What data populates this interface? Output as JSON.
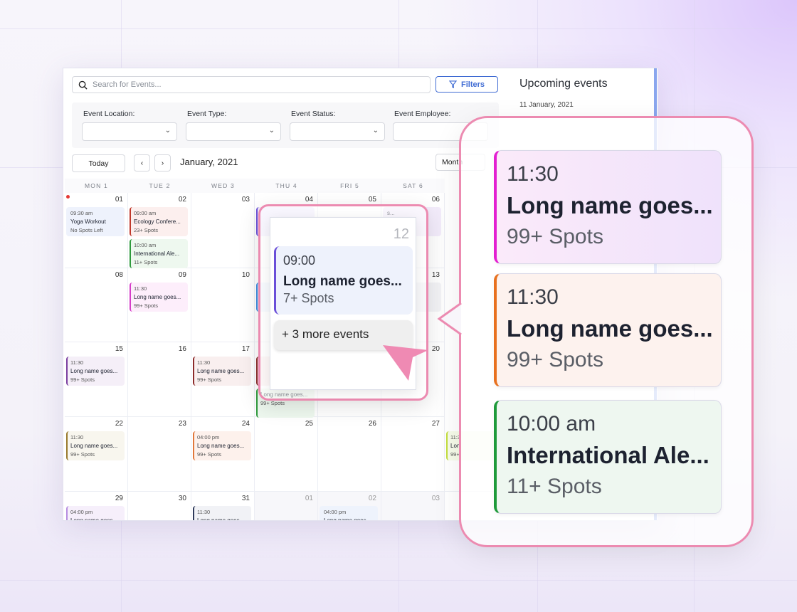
{
  "search": {
    "placeholder": "Search for Events..."
  },
  "filters_label": "Filters",
  "filter_groups": [
    {
      "label": "Event Location:"
    },
    {
      "label": "Event Type:"
    },
    {
      "label": "Event Status:"
    },
    {
      "label": "Event Employee:"
    }
  ],
  "nav": {
    "today": "Today",
    "prev": "‹",
    "next": "›",
    "month_title": "January, 2021",
    "view": "Month"
  },
  "sidebar": {
    "title": "Upcoming events",
    "date": "11 January, 2021"
  },
  "weekdays": [
    "MON 1",
    "TUE 2",
    "WED 3",
    "THU 4",
    "FRI 5",
    "SAT 6"
  ],
  "weeks": [
    [
      {
        "d": "01",
        "dot": true,
        "ev": [
          {
            "t": "09:30 am",
            "n": "Yoga Workout",
            "s": "No Spots Left",
            "c": "#eef2fc",
            "b": "#eef2fc"
          }
        ]
      },
      {
        "d": "02",
        "ev": [
          {
            "t": "09:00 am",
            "n": "Ecology Confere...",
            "s": "23+ Spots",
            "c": "#fcefee",
            "b": "#c0392b"
          },
          {
            "t": "10:00 am",
            "n": "International Ale...",
            "s": "11+ Spots",
            "c": "#eef8ef",
            "b": "#2e9a3c"
          }
        ]
      },
      {
        "d": "03",
        "ev": []
      },
      {
        "d": "04",
        "ev": [
          {
            "t": "",
            "n": "",
            "s": "",
            "c": "#f1ecfc",
            "b": "#6a4fd8"
          }
        ]
      },
      {
        "d": "05",
        "ev": []
      },
      {
        "d": "06",
        "ev": [
          {
            "t": "",
            "n": "s...",
            "s": "",
            "c": "#f3ecfb",
            "b": "#f3ecfb"
          }
        ]
      }
    ],
    [
      {
        "d": "08",
        "ev": []
      },
      {
        "d": "09",
        "ev": [
          {
            "t": "11:30",
            "n": "Long name goes...",
            "s": "99+ Spots",
            "c": "#fdeefb",
            "b": "#d63cc8"
          }
        ]
      },
      {
        "d": "10",
        "ev": []
      },
      {
        "d": "11",
        "ev": [
          {
            "t": "",
            "n": "",
            "s": "",
            "c": "#eef4fc",
            "b": "#3d8be0"
          }
        ]
      },
      {
        "d": "12",
        "ev": []
      },
      {
        "d": "13",
        "ev": [
          {
            "t": "",
            "n": "s...",
            "s": "",
            "c": "#f3f3f6",
            "b": "#f3f3f6"
          }
        ]
      }
    ],
    [
      {
        "d": "15",
        "ev": [
          {
            "t": "11:30",
            "n": "Long name goes...",
            "s": "99+ Spots",
            "c": "#f5eff8",
            "b": "#7b3fa0"
          }
        ]
      },
      {
        "d": "16",
        "ev": []
      },
      {
        "d": "17",
        "ev": [
          {
            "t": "11:30",
            "n": "Long name goes...",
            "s": "99+ Spots",
            "c": "#f9efef",
            "b": "#8b2a2a"
          }
        ]
      },
      {
        "d": "18",
        "ev": [
          {
            "t": "",
            "n": "",
            "s": "",
            "c": "#fbefef",
            "b": "#8b2a2a"
          },
          {
            "t": "",
            "n": "Long name goes...",
            "s": "99+ Spots",
            "c": "#eef8ef",
            "b": "#2e9a3c"
          }
        ]
      },
      {
        "d": "19",
        "ev": []
      },
      {
        "d": "20",
        "ev": []
      }
    ],
    [
      {
        "d": "22",
        "ev": [
          {
            "t": "11:30",
            "n": "Long name goes...",
            "s": "99+ Spots",
            "c": "#f8f6ee",
            "b": "#9a7a2e"
          }
        ]
      },
      {
        "d": "23",
        "ev": []
      },
      {
        "d": "24",
        "ev": [
          {
            "t": "04:00 pm",
            "n": "Long name goes...",
            "s": "99+ Spots",
            "c": "#fdf1ec",
            "b": "#e0773a"
          }
        ]
      },
      {
        "d": "25",
        "ev": []
      },
      {
        "d": "26",
        "ev": []
      },
      {
        "d": "27",
        "ev": []
      },
      {
        "d": "",
        "ev": [
          {
            "t": "11:3",
            "n": "Lon",
            "s": "99+",
            "c": "#f6fbe9",
            "b": "#c3de3b"
          }
        ]
      }
    ],
    [
      {
        "d": "29",
        "ev": [
          {
            "t": "04:00 pm",
            "n": "Long name goes...",
            "s": "",
            "c": "#f6effb",
            "b": "#b78de0"
          }
        ]
      },
      {
        "d": "30",
        "ev": []
      },
      {
        "d": "31",
        "ev": [
          {
            "t": "11:30",
            "n": "Long name goes...",
            "s": "",
            "c": "#f1f2f6",
            "b": "#2e3a5a"
          }
        ]
      },
      {
        "d": "01",
        "other": true,
        "ev": []
      },
      {
        "d": "02",
        "other": true,
        "ev": [
          {
            "t": "04:00 pm",
            "n": "Long name goes...",
            "s": "",
            "c": "#eef3fc",
            "b": "#eef3fc"
          }
        ]
      },
      {
        "d": "03",
        "other": true,
        "ev": []
      }
    ]
  ],
  "popover": {
    "day": "12",
    "event": {
      "time": "09:00",
      "name": "Long name goes...",
      "spots": "7+ Spots"
    },
    "more": "+ 3 more events"
  },
  "callout": {
    "events": [
      {
        "time": "11:30",
        "name": "Long name goes...",
        "spots": "99+ Spots",
        "color": "#e31fd1",
        "bg": "linear-gradient(90deg,#fbeafa,#efe2fb)"
      },
      {
        "time": "11:30",
        "name": "Long name goes...",
        "spots": "99+ Spots",
        "color": "#e8711f",
        "bg": "#fdf2ee"
      },
      {
        "time": "10:00 am",
        "name": "International Ale...",
        "spots": "11+ Spots",
        "color": "#1e9a3a",
        "bg": "#eef7f0"
      }
    ]
  }
}
